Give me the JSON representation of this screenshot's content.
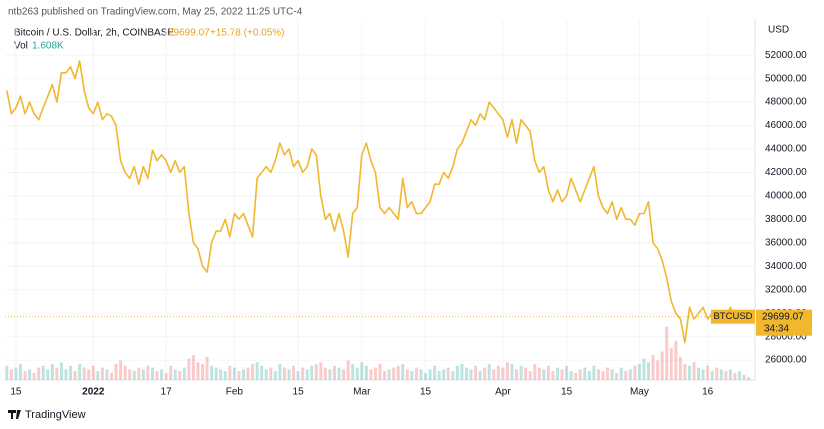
{
  "header": {
    "publisher": "ntb263 published on TradingView.com, May 25, 2022 11:25 UTC-4",
    "logo": "TradingView"
  },
  "chart_data": {
    "type": "line",
    "title": "Bitcoin / U.S. Dollar, 2h, COINBASE",
    "last_price": "29699.07",
    "change": "+15.78 (+0.05%)",
    "currency": "USD",
    "symbol": "BTCUSD",
    "countdown": "34:34",
    "x": [
      -2,
      -1,
      0,
      1,
      2,
      3,
      4,
      5,
      6,
      7,
      8,
      9,
      10,
      11,
      12,
      13,
      14,
      15,
      16,
      17,
      18,
      19,
      20,
      21,
      22,
      23,
      24,
      25,
      26,
      27,
      28,
      29,
      30,
      31,
      32,
      33,
      34,
      35,
      36,
      37,
      38,
      39,
      40,
      41,
      42,
      43,
      44,
      45,
      46,
      47,
      48,
      49,
      50,
      51,
      52,
      53,
      54,
      55,
      56,
      57,
      58,
      59,
      60,
      61,
      62,
      63,
      64,
      65,
      66,
      67,
      68,
      69,
      70,
      71,
      72,
      73,
      74,
      75,
      76,
      77,
      78,
      79,
      80,
      81,
      82,
      83,
      84,
      85,
      86,
      87,
      88,
      89,
      90,
      91,
      92,
      93,
      94,
      95,
      96,
      97,
      98,
      99,
      100,
      101,
      102,
      103,
      104,
      105,
      106,
      107,
      108,
      109,
      110,
      111,
      112,
      113,
      114,
      115,
      116,
      117,
      118,
      119,
      120,
      121,
      122,
      123,
      124,
      125,
      126,
      127,
      128,
      129,
      130,
      131,
      132,
      133,
      134,
      135,
      136,
      137,
      138,
      139,
      140,
      141,
      142,
      143,
      144,
      145,
      146,
      147,
      148,
      149,
      150,
      151,
      152,
      153,
      154,
      155,
      156,
      157,
      158,
      159,
      160,
      161
    ],
    "series": [
      {
        "name": "BTCUSD",
        "color": "#f0b72f",
        "values": [
          49000,
          47000,
          47500,
          48500,
          47000,
          48000,
          47000,
          46500,
          47500,
          48500,
          49500,
          48000,
          50500,
          50500,
          51000,
          50000,
          51500,
          49000,
          47500,
          47000,
          48000,
          46500,
          47000,
          46800,
          46000,
          43000,
          42000,
          41500,
          42500,
          41000,
          42500,
          41500,
          43900,
          43000,
          43500,
          43000,
          42000,
          43000,
          42000,
          42500,
          38500,
          36000,
          35500,
          34000,
          33500,
          36000,
          37000,
          37000,
          38000,
          36500,
          38500,
          38000,
          38500,
          37500,
          36500,
          41500,
          42000,
          42500,
          42000,
          43000,
          44500,
          43500,
          44000,
          42500,
          43000,
          42000,
          42500,
          44000,
          43500,
          40000,
          38000,
          38500,
          37000,
          38500,
          37000,
          34800,
          38500,
          39000,
          43500,
          44500,
          43000,
          42000,
          39000,
          38500,
          39000,
          38500,
          38000,
          41500,
          39000,
          39500,
          38500,
          38500,
          39000,
          39500,
          41000,
          41000,
          42000,
          41500,
          42500,
          44000,
          44500,
          45500,
          46500,
          46000,
          47000,
          46500,
          48000,
          47500,
          47000,
          46500,
          45000,
          46500,
          44500,
          46500,
          46000,
          45500,
          43000,
          42000,
          42500,
          40500,
          39500,
          40500,
          39500,
          40000,
          41500,
          40500,
          39500,
          40500,
          41500,
          42500,
          40000,
          39000,
          38500,
          39500,
          38000,
          39000,
          38000,
          38000,
          37500,
          38500,
          38500,
          39500,
          36000,
          35500,
          34500,
          33000,
          31000,
          30000,
          29500,
          27500,
          30500,
          29500,
          30000,
          30500,
          29500,
          30000,
          29500,
          30000,
          29500,
          30500,
          29500,
          29800,
          29600,
          29699.07
        ]
      },
      {
        "name": "Vol",
        "values": [
          8,
          6,
          7,
          9,
          5,
          6,
          4,
          7,
          8,
          6,
          9,
          7,
          10,
          6,
          8,
          5,
          9,
          7,
          6,
          8,
          5,
          7,
          6,
          4,
          9,
          11,
          8,
          6,
          5,
          7,
          6,
          8,
          7,
          5,
          6,
          4,
          8,
          6,
          5,
          7,
          12,
          14,
          10,
          9,
          13,
          8,
          7,
          6,
          5,
          8,
          7,
          5,
          6,
          7,
          9,
          10,
          8,
          6,
          7,
          5,
          9,
          7,
          6,
          8,
          5,
          7,
          6,
          8,
          9,
          10,
          7,
          6,
          8,
          7,
          6,
          11,
          9,
          7,
          10,
          8,
          6,
          7,
          9,
          5,
          6,
          7,
          8,
          9,
          6,
          5,
          7,
          6,
          4,
          6,
          8,
          5,
          6,
          7,
          5,
          8,
          9,
          7,
          6,
          8,
          5,
          7,
          9,
          6,
          8,
          7,
          10,
          9,
          6,
          8,
          7,
          5,
          9,
          7,
          6,
          8,
          5,
          7,
          6,
          8,
          5,
          4,
          6,
          7,
          5,
          8,
          6,
          5,
          7,
          6,
          4,
          7,
          5,
          6,
          8,
          9,
          12,
          10,
          14,
          11,
          16,
          30,
          18,
          22,
          13,
          9,
          8,
          10,
          7,
          6,
          8,
          5,
          7,
          6,
          5,
          6,
          4,
          5,
          3,
          1.608
        ],
        "value_labels": {
          "163": "1.608K"
        }
      }
    ],
    "up_color": "#26a69a",
    "down_color": "#ef5350",
    "xlim": [
      -2.4,
      162.4
    ],
    "xticks": [
      {
        "value": 0,
        "label": "15"
      },
      {
        "value": 17,
        "label": "2022"
      },
      {
        "value": 33,
        "label": "17"
      },
      {
        "value": 48,
        "label": "Feb"
      },
      {
        "value": 62,
        "label": "15"
      },
      {
        "value": 76,
        "label": "Mar"
      },
      {
        "value": 90,
        "label": "15"
      },
      {
        "value": 107,
        "label": "Apr"
      },
      {
        "value": 121,
        "label": "15"
      },
      {
        "value": 137,
        "label": "May"
      },
      {
        "value": 152,
        "label": "16"
      }
    ],
    "ylim": [
      24300,
      55000
    ],
    "yticks": [
      {
        "value": 26000,
        "label": "26000.00"
      },
      {
        "value": 28000,
        "label": "28000.00"
      },
      {
        "value": 30000,
        "label": "30000.00"
      },
      {
        "value": 32000,
        "label": "32000.00"
      },
      {
        "value": 34000,
        "label": "34000.00"
      },
      {
        "value": 36000,
        "label": "36000.00"
      },
      {
        "value": 38000,
        "label": "38000.00"
      },
      {
        "value": 40000,
        "label": "40000.00"
      },
      {
        "value": 42000,
        "label": "42000.00"
      },
      {
        "value": 44000,
        "label": "44000.00"
      },
      {
        "value": 46000,
        "label": "46000.00"
      },
      {
        "value": 48000,
        "label": "48000.00"
      },
      {
        "value": 50000,
        "label": "50000.00"
      },
      {
        "value": 52000,
        "label": "52000.00"
      }
    ],
    "vlim": [
      0,
      45
    ],
    "grid": true
  }
}
